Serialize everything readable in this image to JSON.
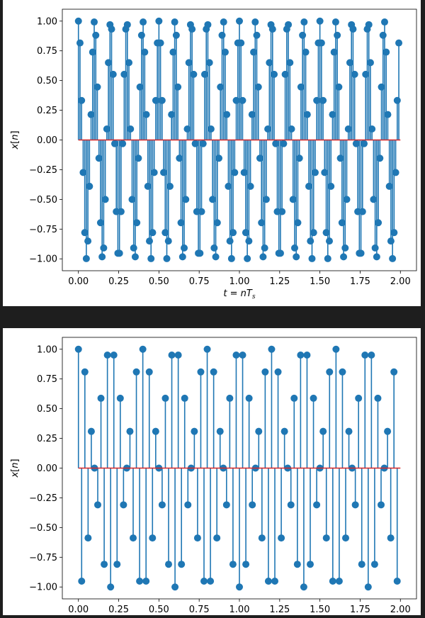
{
  "chart_data": [
    {
      "type": "stem",
      "xlabel": "t = nT_s",
      "ylabel": "x[n]",
      "xlim": [
        -0.1,
        2.1
      ],
      "ylim": [
        -1.1,
        1.1
      ],
      "xticks": [
        "0.00",
        "0.25",
        "0.50",
        "0.75",
        "1.00",
        "1.25",
        "1.50",
        "1.75",
        "2.00"
      ],
      "yticks": [
        "1.00",
        "0.75",
        "0.50",
        "0.25",
        "0.00",
        "−0.25",
        "−0.50",
        "−0.75",
        "−1.00"
      ],
      "signal": {
        "function": "cos",
        "frequency_hz": 10,
        "sample_interval_s": 0.00980392,
        "t_start": 0.0,
        "t_end": 2.0
      },
      "colors": {
        "stem": "#1f77b4",
        "baseline": "#d62728"
      }
    },
    {
      "type": "stem",
      "xlabel": "",
      "ylabel": "x[n]",
      "xlim": [
        -0.1,
        2.1
      ],
      "ylim": [
        -1.1,
        1.1
      ],
      "xticks": [
        "0.00",
        "0.25",
        "0.50",
        "0.75",
        "1.00",
        "1.25",
        "1.50",
        "1.75",
        "2.00"
      ],
      "yticks": [
        "1.00",
        "0.75",
        "0.50",
        "0.25",
        "0.00",
        "−0.25",
        "−0.50",
        "−0.75",
        "−1.00"
      ],
      "signal": {
        "function": "cos",
        "frequency_hz": 22.5,
        "sample_interval_s": 0.02,
        "t_start": 0.0,
        "t_end": 2.0
      },
      "colors": {
        "stem": "#1f77b4",
        "baseline": "#d62728"
      }
    }
  ]
}
